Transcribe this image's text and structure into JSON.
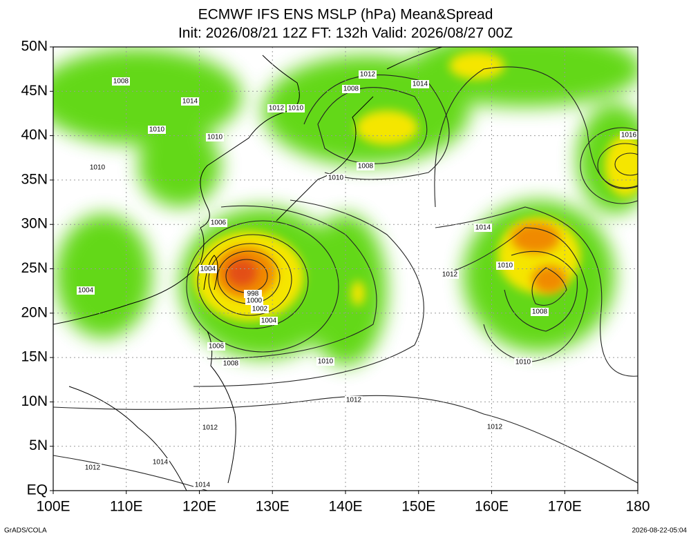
{
  "header": {
    "title_lines": [
      "ECMWF IFS ENS MSLP (hPa) Mean&Spread",
      "Init: 2026/08/21 12Z  FT: 132h  Valid: 2026/08/27 00Z"
    ]
  },
  "map": {
    "lat_labels": [
      "50N",
      "45N",
      "40N",
      "35N",
      "30N",
      "25N",
      "20N",
      "15N",
      "10N",
      "5N",
      "EQ"
    ],
    "lon_labels": [
      "100E",
      "110E",
      "120E",
      "130E",
      "140E",
      "150E",
      "160E",
      "170E",
      "180"
    ],
    "contour_labels": [
      "1008",
      "1014",
      "1012",
      "1010",
      "1012",
      "1014",
      "1008",
      "1010",
      "1010",
      "1008",
      "1010",
      "1016",
      "1014",
      "1012",
      "1010",
      "1008",
      "1004",
      "998",
      "1000",
      "1002",
      "1004",
      "1006",
      "1008",
      "1010",
      "1010",
      "1012",
      "1012",
      "1012",
      "1014",
      "1014",
      "1012",
      "1006",
      "1004",
      "1010"
    ]
  },
  "footer": {
    "left": "GrADS/COLA",
    "right": "2026-08-22-05:04"
  }
}
